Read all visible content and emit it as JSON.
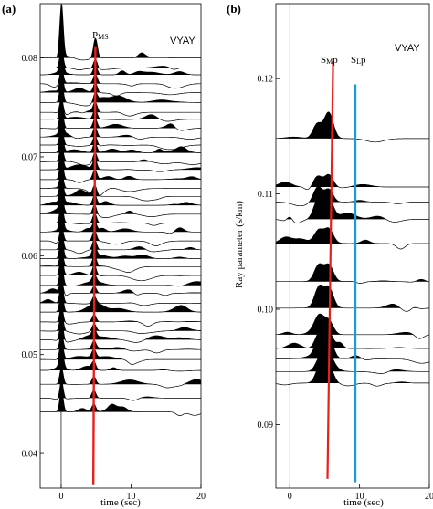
{
  "chart_data": [
    {
      "type": "line",
      "panel_label": "(a)",
      "station": "VYAY",
      "phase_label": {
        "main": "P",
        "sub": "MS"
      },
      "xlabel": "time (sec)",
      "ylabel": "",
      "xlim": [
        -3,
        20
      ],
      "ylim": [
        0.0365,
        0.0855
      ],
      "xticks": [
        0,
        10,
        20
      ],
      "yticks": [
        0.04,
        0.05,
        0.06,
        0.07,
        0.08
      ],
      "ytick_labels": [
        "0.04",
        "0.05",
        "0.06",
        "0.07",
        "0.08"
      ],
      "xtick_labels": [
        "0",
        "10",
        "20"
      ],
      "zero_line": {
        "x": 0,
        "color": "#000000"
      },
      "phase_line": {
        "x_start": 4.9,
        "y_start": 0.0812,
        "x_end": 4.6,
        "y_end": 0.0368,
        "color": "#e8201c"
      },
      "trace_ray_parameters": [
        0.08,
        0.079,
        0.0783,
        0.0774,
        0.0765,
        0.0755,
        0.0745,
        0.0738,
        0.0729,
        0.072,
        0.0712,
        0.0704,
        0.0695,
        0.0687,
        0.0677,
        0.0668,
        0.066,
        0.0651,
        0.0642,
        0.0633,
        0.0624,
        0.0615,
        0.0606,
        0.0597,
        0.0589,
        0.058,
        0.057,
        0.0562,
        0.0552,
        0.0543,
        0.0533,
        0.0524,
        0.0515,
        0.0505,
        0.0495,
        0.0484,
        0.047,
        0.0456,
        0.0442
      ]
    },
    {
      "type": "line",
      "panel_label": "(b)",
      "station": "VYAY",
      "phase_labels": [
        {
          "main": "S",
          "sub": "M",
          "tail": "p"
        },
        {
          "main": "S",
          "sub": "L",
          "tail": "p"
        }
      ],
      "xlabel": "time (sec)",
      "ylabel": "Ray parameter (s/km)",
      "xlim": [
        -2,
        20
      ],
      "ylim": [
        0.0845,
        0.1265
      ],
      "xticks": [
        0,
        10,
        20
      ],
      "yticks": [
        0.09,
        0.1,
        0.11,
        0.12
      ],
      "ytick_labels": [
        "0.09",
        "0.10",
        "0.11",
        "0.12"
      ],
      "xtick_labels": [
        "0",
        "10",
        "20"
      ],
      "zero_line": {
        "x": 0,
        "color": "#000000"
      },
      "phase_lines": [
        {
          "x_start": 6.2,
          "y_start": 0.1215,
          "x_end": 5.4,
          "y_end": 0.0853,
          "color": "#e8201c"
        },
        {
          "x_start": 9.4,
          "y_start": 0.1195,
          "x_end": 9.4,
          "y_end": 0.085,
          "color": "#1f9ad6"
        }
      ],
      "trace_ray_parameters": [
        0.1148,
        0.1106,
        0.1093,
        0.1078,
        0.1057,
        0.1024,
        0.1001,
        0.0978,
        0.0966,
        0.0957,
        0.0946,
        0.0936
      ]
    }
  ]
}
